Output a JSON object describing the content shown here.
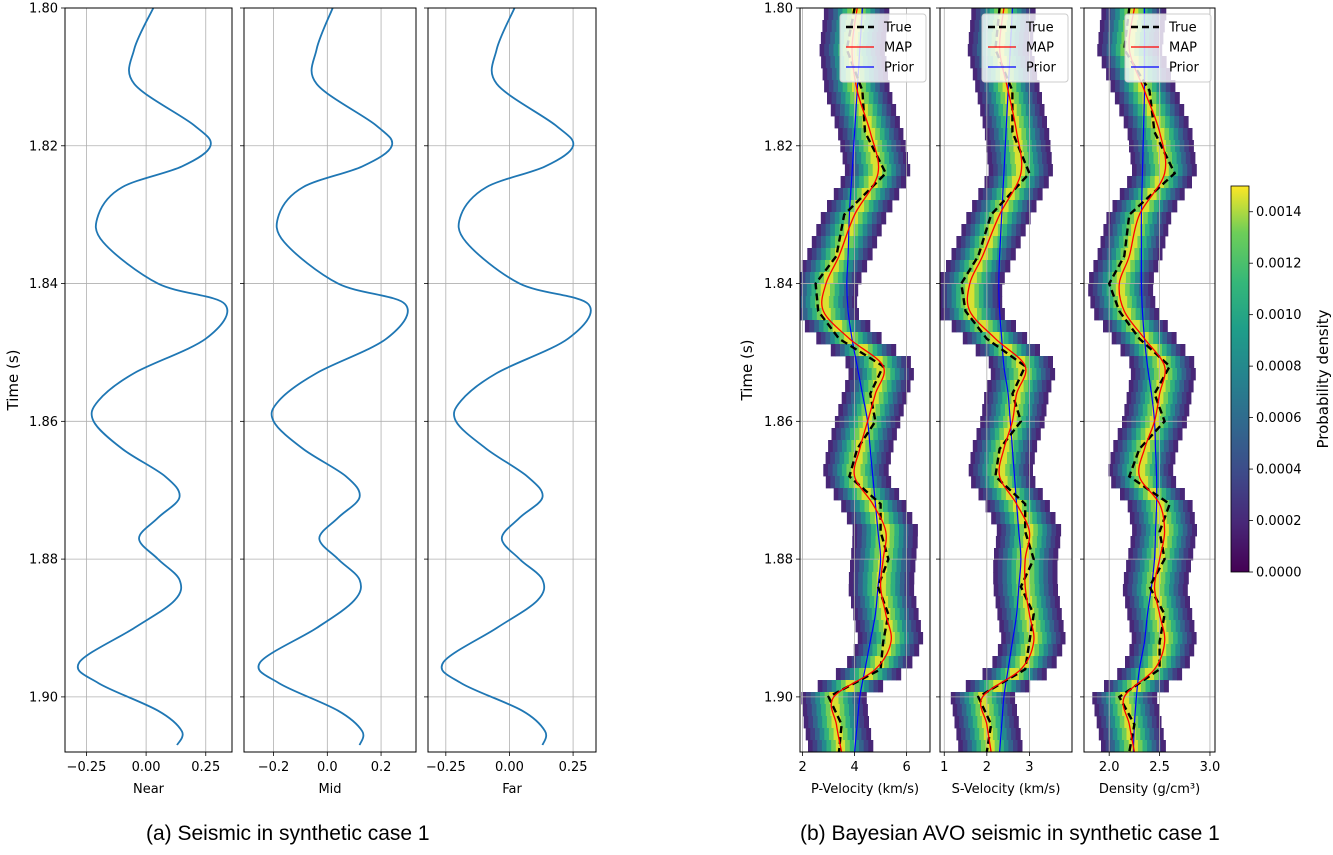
{
  "captions": {
    "a": "(a) Seismic in synthetic case 1",
    "b": "(b) Bayesian AVO seismic in synthetic case 1"
  },
  "colors": {
    "seismic_trace": "#1f77b4",
    "true": "#000000",
    "map": "#ff0000",
    "prior": "#0000ff",
    "grid": "#b0b0b0"
  },
  "colorbar": {
    "label": "Probability density",
    "colormap": "viridis",
    "range": [
      0,
      0.0015
    ],
    "ticks": [
      "0.0000",
      "0.0002",
      "0.0004",
      "0.0006",
      "0.0008",
      "0.0010",
      "0.0012",
      "0.0014"
    ]
  },
  "chart_data": [
    {
      "type": "line",
      "panel": "a",
      "ylabel": "Time (s)",
      "y_range": [
        1.908,
        1.8
      ],
      "y_ticks": [
        "1.80",
        "1.82",
        "1.84",
        "1.86",
        "1.88",
        "1.90"
      ],
      "grid": true,
      "subplots": [
        {
          "xlabel": "Near",
          "xlim": [
            -0.34,
            0.36
          ],
          "x_ticks": [
            -0.25,
            0.0,
            0.25
          ],
          "x_tick_labels": [
            "−0.25",
            "0.00",
            "0.25"
          ],
          "series": [
            {
              "t": [
                1.8,
                1.806,
                1.811,
                1.817,
                1.82,
                1.823,
                1.826,
                1.83,
                1.834,
                1.84,
                1.843,
                1.848,
                1.853,
                1.857,
                1.86,
                1.864,
                1.868,
                1.871,
                1.874,
                1.877,
                1.88,
                1.883,
                1.886,
                1.89,
                1.895,
                1.898,
                1.902,
                1.905,
                1.907
              ],
              "amplitude": [
                0.03,
                -0.05,
                -0.05,
                0.2,
                0.27,
                0.15,
                -0.1,
                -0.2,
                -0.18,
                0.05,
                0.33,
                0.25,
                -0.05,
                -0.2,
                -0.22,
                -0.1,
                0.08,
                0.14,
                0.05,
                -0.03,
                0.05,
                0.14,
                0.12,
                -0.05,
                -0.28,
                -0.2,
                0.05,
                0.15,
                0.13
              ]
            }
          ]
        },
        {
          "xlabel": "Mid",
          "xlim": [
            -0.31,
            0.33
          ],
          "x_ticks": [
            -0.2,
            0.0,
            0.2
          ],
          "x_tick_labels": [
            "−0.2",
            "0.0",
            "0.2"
          ],
          "series": [
            {
              "t": [
                1.8,
                1.806,
                1.811,
                1.817,
                1.82,
                1.823,
                1.826,
                1.83,
                1.834,
                1.84,
                1.843,
                1.848,
                1.853,
                1.857,
                1.86,
                1.864,
                1.868,
                1.871,
                1.874,
                1.877,
                1.88,
                1.883,
                1.886,
                1.89,
                1.895,
                1.898,
                1.902,
                1.905,
                1.907
              ],
              "amplitude": [
                0.02,
                -0.04,
                -0.04,
                0.18,
                0.24,
                0.13,
                -0.09,
                -0.18,
                -0.16,
                0.04,
                0.29,
                0.22,
                -0.04,
                -0.18,
                -0.2,
                -0.09,
                0.07,
                0.12,
                0.04,
                -0.03,
                0.04,
                0.12,
                0.1,
                -0.04,
                -0.25,
                -0.18,
                0.04,
                0.13,
                0.12
              ]
            }
          ]
        },
        {
          "xlabel": "Far",
          "xlim": [
            -0.32,
            0.34
          ],
          "x_ticks": [
            -0.25,
            0.0,
            0.25
          ],
          "x_tick_labels": [
            "−0.25",
            "0.00",
            "0.25"
          ],
          "series": [
            {
              "t": [
                1.8,
                1.806,
                1.811,
                1.817,
                1.82,
                1.823,
                1.826,
                1.83,
                1.834,
                1.84,
                1.843,
                1.848,
                1.853,
                1.857,
                1.86,
                1.864,
                1.868,
                1.871,
                1.874,
                1.877,
                1.88,
                1.883,
                1.886,
                1.89,
                1.895,
                1.898,
                1.902,
                1.905,
                1.907
              ],
              "amplitude": [
                0.02,
                -0.05,
                -0.05,
                0.18,
                0.25,
                0.14,
                -0.09,
                -0.19,
                -0.17,
                0.04,
                0.31,
                0.23,
                -0.05,
                -0.19,
                -0.21,
                -0.09,
                0.07,
                0.13,
                0.04,
                -0.03,
                0.04,
                0.13,
                0.11,
                -0.05,
                -0.26,
                -0.19,
                0.05,
                0.14,
                0.13
              ]
            }
          ]
        }
      ]
    },
    {
      "type": "heatmap",
      "panel": "b",
      "ylabel": "Time (s)",
      "y_range": [
        1.908,
        1.8
      ],
      "y_ticks": [
        "1.80",
        "1.82",
        "1.84",
        "1.86",
        "1.88",
        "1.90"
      ],
      "grid": true,
      "legend": {
        "placement": "top-right",
        "entries": [
          "True",
          "MAP",
          "Prior"
        ]
      },
      "subplots": [
        {
          "xlabel": "P-Velocity (km/s)",
          "xlim": [
            1.9,
            6.9
          ],
          "x_ticks": [
            2,
            4,
            6
          ],
          "x_tick_labels": [
            "2",
            "4",
            "6"
          ],
          "band_halfwidth": 1.25,
          "t": [
            1.8,
            1.806,
            1.812,
            1.818,
            1.824,
            1.83,
            1.836,
            1.84,
            1.844,
            1.848,
            1.852,
            1.856,
            1.86,
            1.864,
            1.868,
            1.872,
            1.876,
            1.88,
            1.884,
            1.888,
            1.892,
            1.896,
            1.9,
            1.904,
            1.908
          ],
          "map": [
            4.1,
            3.9,
            4.1,
            4.6,
            4.9,
            4.0,
            3.4,
            2.9,
            2.8,
            3.8,
            5.1,
            4.8,
            4.5,
            4.2,
            4.0,
            4.7,
            5.2,
            5.1,
            5.0,
            5.2,
            5.4,
            4.8,
            3.2,
            3.3,
            3.5
          ],
          "true": [
            4.0,
            3.7,
            4.3,
            4.4,
            5.2,
            3.6,
            3.3,
            2.5,
            2.6,
            3.4,
            5.1,
            4.6,
            4.8,
            4.1,
            3.8,
            5.0,
            5.0,
            5.3,
            4.9,
            5.3,
            5.1,
            5.0,
            3.0,
            3.5,
            3.4
          ],
          "prior": [
            4.3,
            4.2,
            4.1,
            4.0,
            3.9,
            3.8,
            3.75,
            3.7,
            3.75,
            3.9,
            4.1,
            4.3,
            4.5,
            4.6,
            4.7,
            4.8,
            4.9,
            5.0,
            4.9,
            4.8,
            4.6,
            4.4,
            4.2,
            4.1,
            4.0
          ]
        },
        {
          "xlabel": "S-Velocity (km/s)",
          "xlim": [
            0.9,
            4.0
          ],
          "x_ticks": [
            1,
            2,
            3
          ],
          "x_tick_labels": [
            "1",
            "2",
            "3"
          ],
          "band_halfwidth": 0.75,
          "t": [
            1.8,
            1.806,
            1.812,
            1.818,
            1.824,
            1.83,
            1.836,
            1.84,
            1.844,
            1.848,
            1.852,
            1.856,
            1.86,
            1.864,
            1.868,
            1.872,
            1.876,
            1.88,
            1.884,
            1.888,
            1.892,
            1.896,
            1.9,
            1.904,
            1.908
          ],
          "map": [
            2.4,
            2.3,
            2.5,
            2.7,
            2.8,
            2.3,
            1.9,
            1.6,
            1.6,
            2.2,
            2.9,
            2.7,
            2.6,
            2.4,
            2.3,
            2.7,
            3.0,
            2.9,
            2.9,
            3.0,
            3.1,
            2.8,
            1.9,
            2.0,
            2.1
          ],
          "true": [
            2.3,
            2.2,
            2.6,
            2.6,
            3.0,
            2.1,
            1.8,
            1.4,
            1.5,
            2.0,
            2.9,
            2.6,
            2.8,
            2.3,
            2.2,
            2.9,
            2.9,
            3.1,
            2.8,
            3.1,
            3.0,
            2.9,
            1.8,
            2.1,
            2.0
          ],
          "prior": [
            2.6,
            2.55,
            2.5,
            2.45,
            2.4,
            2.35,
            2.3,
            2.28,
            2.3,
            2.35,
            2.4,
            2.5,
            2.55,
            2.6,
            2.65,
            2.7,
            2.75,
            2.8,
            2.75,
            2.7,
            2.6,
            2.5,
            2.4,
            2.35,
            2.3
          ]
        },
        {
          "xlabel": "Density (g/cm³)",
          "xlim": [
            1.75,
            3.05
          ],
          "x_ticks": [
            2.0,
            2.5,
            3.0
          ],
          "x_tick_labels": [
            "2.0",
            "2.5",
            "3.0"
          ],
          "band_halfwidth": 0.32,
          "t": [
            1.8,
            1.806,
            1.812,
            1.818,
            1.824,
            1.83,
            1.836,
            1.84,
            1.844,
            1.848,
            1.852,
            1.856,
            1.86,
            1.864,
            1.868,
            1.872,
            1.876,
            1.88,
            1.884,
            1.888,
            1.892,
            1.896,
            1.9,
            1.904,
            1.908
          ],
          "map": [
            2.25,
            2.2,
            2.35,
            2.5,
            2.55,
            2.3,
            2.2,
            2.1,
            2.15,
            2.35,
            2.55,
            2.5,
            2.45,
            2.35,
            2.3,
            2.5,
            2.55,
            2.5,
            2.45,
            2.5,
            2.55,
            2.45,
            2.15,
            2.2,
            2.25
          ],
          "true": [
            2.2,
            2.15,
            2.4,
            2.45,
            2.65,
            2.2,
            2.15,
            2.0,
            2.1,
            2.3,
            2.6,
            2.45,
            2.55,
            2.3,
            2.2,
            2.6,
            2.5,
            2.55,
            2.4,
            2.55,
            2.5,
            2.5,
            2.1,
            2.25,
            2.2
          ],
          "prior": [
            2.35,
            2.35,
            2.35,
            2.34,
            2.33,
            2.32,
            2.32,
            2.32,
            2.33,
            2.35,
            2.38,
            2.42,
            2.45,
            2.46,
            2.47,
            2.47,
            2.46,
            2.45,
            2.42,
            2.38,
            2.35,
            2.3,
            2.27,
            2.25,
            2.24
          ]
        }
      ]
    }
  ]
}
